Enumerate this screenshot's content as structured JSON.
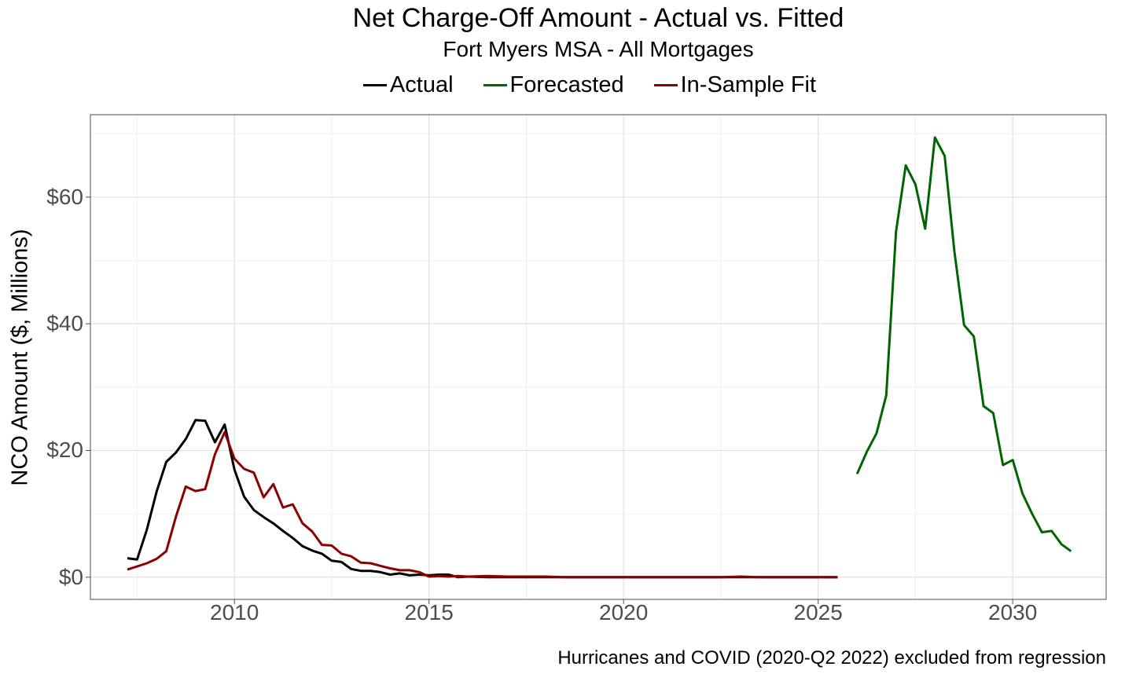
{
  "chart_data": {
    "type": "line",
    "title": "Net Charge-Off Amount - Actual vs. Fitted",
    "subtitle": "Fort Myers MSA - All Mortgages",
    "ylabel": "NCO Amount ($, Millions)",
    "xlabel": "",
    "caption": "Hurricanes and COVID (2020-Q2 2022) excluded from regression",
    "xlim": [
      2006.3,
      2032.4
    ],
    "ylim": [
      -3.5,
      73
    ],
    "xticks": [
      2010,
      2015,
      2020,
      2025,
      2030
    ],
    "xtick_labels": [
      "2010",
      "2015",
      "2020",
      "2025",
      "2030"
    ],
    "yticks": [
      0,
      20,
      40,
      60
    ],
    "ytick_labels": [
      "$0",
      "$20",
      "$40",
      "$60"
    ],
    "grid": true,
    "legend_position": "top",
    "series": [
      {
        "name": "Actual",
        "color": "#000000",
        "x": [
          2007.25,
          2007.5,
          2007.75,
          2008.0,
          2008.25,
          2008.5,
          2008.75,
          2009.0,
          2009.25,
          2009.5,
          2009.75,
          2010.0,
          2010.25,
          2010.5,
          2010.75,
          2011.0,
          2011.25,
          2011.5,
          2011.75,
          2012.0,
          2012.25,
          2012.5,
          2012.75,
          2013.0,
          2013.25,
          2013.5,
          2013.75,
          2014.0,
          2014.25,
          2014.5,
          2014.75,
          2015.0,
          2015.25,
          2015.5,
          2015.75,
          2016.0,
          2016.5,
          2017.0,
          2017.5,
          2018.0,
          2018.5,
          2019.0,
          2019.5,
          2020.0,
          2020.5,
          2021.0,
          2021.5,
          2022.0,
          2022.5,
          2023.0,
          2023.5,
          2024.0,
          2024.5,
          2025.0,
          2025.5
        ],
        "y": [
          3.0,
          2.8,
          7.5,
          13.5,
          18.2,
          19.7,
          21.8,
          24.8,
          24.7,
          21.3,
          24.1,
          17.0,
          12.7,
          10.6,
          9.5,
          8.5,
          7.3,
          6.2,
          4.9,
          4.2,
          3.7,
          2.6,
          2.4,
          1.3,
          1.0,
          1.0,
          0.8,
          0.4,
          0.6,
          0.3,
          0.4,
          0.3,
          0.4,
          0.4,
          0.0,
          0.1,
          0.0,
          0.0,
          0.0,
          0.0,
          0.0,
          0.0,
          0.0,
          0.0,
          0.0,
          0.0,
          0.0,
          0.0,
          0.0,
          0.0,
          0.0,
          0.0,
          0.0,
          0.0,
          0.0
        ]
      },
      {
        "name": "Forecasted",
        "color": "#006400",
        "x": [
          2026.0,
          2026.25,
          2026.5,
          2026.75,
          2027.0,
          2027.25,
          2027.5,
          2027.75,
          2028.0,
          2028.25,
          2028.5,
          2028.75,
          2029.0,
          2029.25,
          2029.5,
          2029.75,
          2030.0,
          2030.25,
          2030.5,
          2030.75,
          2031.0,
          2031.25,
          2031.5
        ],
        "y": [
          16.3,
          19.8,
          22.7,
          28.7,
          54.5,
          65.0,
          62.0,
          55.0,
          69.4,
          66.5,
          51.5,
          39.8,
          38.0,
          27.0,
          25.9,
          17.7,
          18.5,
          13.2,
          10.0,
          7.1,
          7.3,
          5.2,
          4.1
        ]
      },
      {
        "name": "In-Sample Fit",
        "color": "#8b0000",
        "x": [
          2007.25,
          2007.5,
          2007.75,
          2008.0,
          2008.25,
          2008.5,
          2008.75,
          2009.0,
          2009.25,
          2009.5,
          2009.75,
          2010.0,
          2010.25,
          2010.5,
          2010.75,
          2011.0,
          2011.25,
          2011.5,
          2011.75,
          2012.0,
          2012.25,
          2012.5,
          2012.75,
          2013.0,
          2013.25,
          2013.5,
          2013.75,
          2014.0,
          2014.25,
          2014.5,
          2014.75,
          2015.0,
          2015.25,
          2015.5,
          2015.75,
          2016.0,
          2016.5,
          2017.0,
          2017.5,
          2018.0,
          2018.5,
          2019.0,
          2019.5,
          2020.0,
          2020.5,
          2021.0,
          2021.5,
          2022.0,
          2022.5,
          2023.0,
          2023.5,
          2024.0,
          2024.5,
          2025.0,
          2025.5
        ],
        "y": [
          1.2,
          1.7,
          2.2,
          2.9,
          4.1,
          9.6,
          14.3,
          13.6,
          13.9,
          19.4,
          22.9,
          18.7,
          17.1,
          16.5,
          12.6,
          14.7,
          11.0,
          11.5,
          8.5,
          7.2,
          5.1,
          5.0,
          3.7,
          3.3,
          2.3,
          2.2,
          1.8,
          1.4,
          1.1,
          1.1,
          0.8,
          0.1,
          0.2,
          0.1,
          0.2,
          0.1,
          0.2,
          0.1,
          0.1,
          0.1,
          0.0,
          0.0,
          0.0,
          0.0,
          0.0,
          0.0,
          0.0,
          0.0,
          0.0,
          0.1,
          0.0,
          0.0,
          0.0,
          0.0,
          0.0
        ]
      }
    ]
  },
  "colors": {
    "actual": "#000000",
    "forecasted": "#006400",
    "in_sample_fit": "#8b0000",
    "grid_major": "#e0e0e0",
    "grid_minor": "#f0f0f0",
    "panel_border": "#4d4d4d",
    "tick_text": "#4d4d4d"
  }
}
